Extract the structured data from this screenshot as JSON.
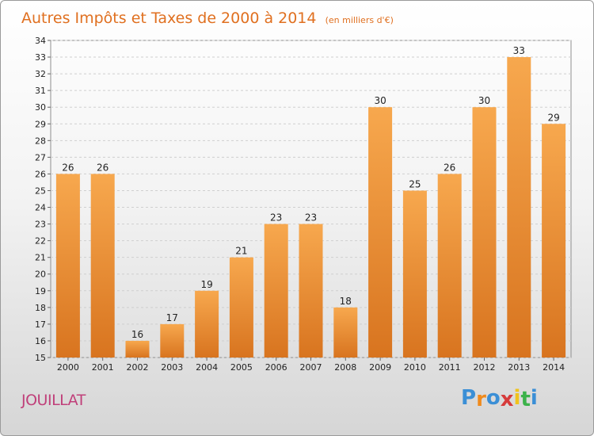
{
  "chart_data": {
    "type": "bar",
    "title": "Autres Impôts et Taxes de 2000 à 2014",
    "subtitle": "(en milliers d'€)",
    "categories": [
      "2000",
      "2001",
      "2002",
      "2003",
      "2004",
      "2005",
      "2006",
      "2007",
      "2008",
      "2009",
      "2010",
      "2011",
      "2012",
      "2013",
      "2014"
    ],
    "values": [
      26,
      26,
      16,
      17,
      19,
      21,
      23,
      23,
      18,
      30,
      25,
      26,
      30,
      33,
      29
    ],
    "ylim": [
      15,
      34
    ],
    "yticks": [
      15,
      16,
      17,
      18,
      19,
      20,
      21,
      22,
      23,
      24,
      25,
      26,
      27,
      28,
      29,
      30,
      31,
      32,
      33,
      34
    ],
    "grid": true,
    "bar_color_top": "#f7a84e",
    "bar_color_bottom": "#d8741f"
  },
  "location": "JOUILLAT",
  "logo": {
    "letters": [
      "P",
      "r",
      "o",
      "x",
      "i",
      "t",
      "i"
    ],
    "colors": [
      "#3b8fd6",
      "#f08a1c",
      "#3b8fd6",
      "#d63b3b",
      "#f0c31c",
      "#3bb24a",
      "#3b8fd6"
    ]
  }
}
